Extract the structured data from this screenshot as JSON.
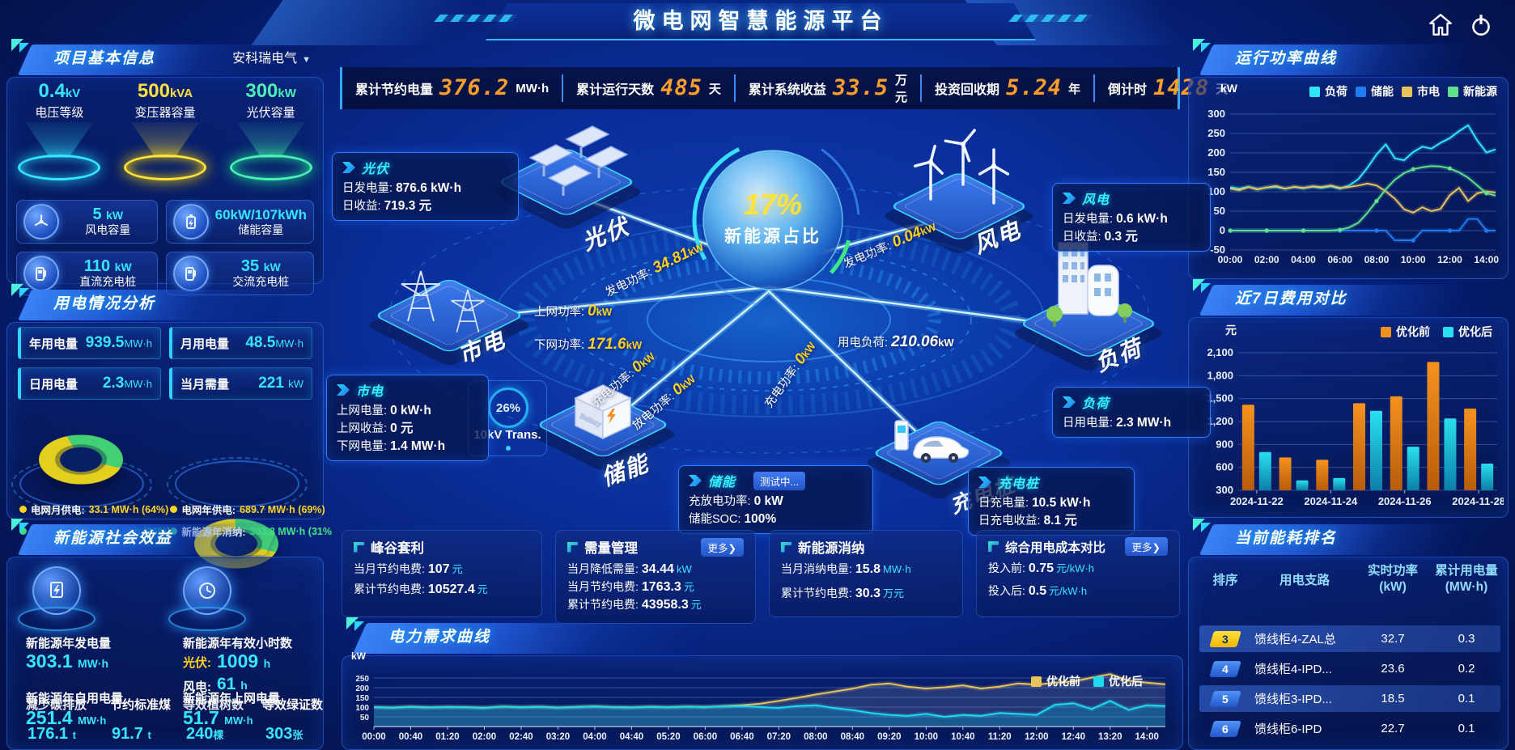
{
  "header": {
    "title": "微电网智慧能源平台"
  },
  "topbar": {
    "stats": [
      {
        "label": "累计节约电量",
        "value": "376.2",
        "unit": "MW·h"
      },
      {
        "label": "累计运行天数",
        "value": "485",
        "unit": "天"
      },
      {
        "label": "累计系统收益",
        "value": "33.5",
        "unit": "万元"
      },
      {
        "label": "投资回收期",
        "value": "5.24",
        "unit": "年"
      },
      {
        "label": "倒计时",
        "value": "1428",
        "unit": "天"
      }
    ]
  },
  "project": {
    "title": "项目基本信息",
    "company": "安科瑞电气",
    "caret": "▼",
    "pedestals": [
      {
        "value": "0.4",
        "unit": "kV",
        "label": "电压等级"
      },
      {
        "value": "500",
        "unit": "kVA",
        "label": "变压器容量"
      },
      {
        "value": "300",
        "unit": "kW",
        "label": "光伏容量"
      }
    ],
    "tiles": [
      {
        "value": "5",
        "unit": "kW",
        "label": "风电容量"
      },
      {
        "value": "60kW/107kWh",
        "unit": "",
        "label": "储能容量"
      },
      {
        "value": "110",
        "unit": "kW",
        "label": "直流充电桩"
      },
      {
        "value": "35",
        "unit": "kW",
        "label": "交流充电桩"
      }
    ]
  },
  "usage": {
    "title": "用电情况分析",
    "tiles": [
      {
        "label": "年用电量",
        "value": "939.5",
        "unit": "MW·h"
      },
      {
        "label": "月用电量",
        "value": "48.5",
        "unit": "MW·h"
      },
      {
        "label": "日用电量",
        "value": "2.3",
        "unit": "MW·h"
      },
      {
        "label": "当月需量",
        "value": "221",
        "unit": "kW"
      }
    ],
    "legends": [
      {
        "label": "电网月供电:",
        "value": "33.1 MW·h (64%)",
        "color": "#ffd21e"
      },
      {
        "label": "新能源月消纳:",
        "value": "19 MW·h (36%)",
        "color": "#3ee787"
      },
      {
        "label": "电网年供电:",
        "value": "689.7 MW·h (69%)",
        "color": "#ffd21e"
      },
      {
        "label": "新能源年消纳:",
        "value": "303.8 MW·h (31%",
        "color": "#3ee787"
      }
    ]
  },
  "benefit": {
    "title": "新能源社会效益",
    "gen": {
      "label": "新能源年发电量",
      "value": "303.1",
      "unit": "MW·h"
    },
    "hours": {
      "label": "新能源年有效小时数",
      "pv_label": "光伏:",
      "pv_value": "1009",
      "pv_unit": "h",
      "wind_label": "风电:",
      "wind_value": "61",
      "wind_unit": "h"
    },
    "self_use": {
      "label": "新能源年自用电量",
      "value": "251.4",
      "unit": "MW·h"
    },
    "to_grid": {
      "label": "新能源年上网电量",
      "value": "51.7",
      "unit": "MW·h"
    },
    "co2": {
      "label": "减少碳排放",
      "value": "176.1",
      "unit": "t"
    },
    "coal": {
      "label": "节约标准煤",
      "value": "91.7",
      "unit": "t"
    },
    "trees": {
      "label": "等效植树数",
      "value": "240",
      "unit": "棵"
    },
    "cert": {
      "label": "等效绿证数",
      "value": "303",
      "unit": "张"
    }
  },
  "flow": {
    "center": {
      "value": "17%",
      "label": "新能源占比"
    },
    "islands": {
      "pv": "光伏",
      "wind": "风电",
      "grid": "市电",
      "load": "负荷",
      "storage": "储能",
      "charger": "充电桩"
    },
    "pv_box": {
      "title": "光伏",
      "l1": "日发电量:",
      "v1": "876.6 kW·h",
      "l2": "日收益:",
      "v2": "719.3 元"
    },
    "wind_box": {
      "title": "风电",
      "l1": "日发电量:",
      "v1": "0.6 kW·h",
      "l2": "日收益:",
      "v2": "0.3 元"
    },
    "grid_box": {
      "title": "市电",
      "l1": "上网电量:",
      "v1": "0 kW·h",
      "l2": "上网收益:",
      "v2": "0 元",
      "l3": "下网电量:",
      "v3": "1.4 MW·h"
    },
    "load_box": {
      "title": "负荷",
      "l1": "日用电量:",
      "v1": "2.3 MW·h"
    },
    "storage_box": {
      "title": "储能",
      "badge": "测试中...",
      "l1": "充放电功率:",
      "v1": "0 kW",
      "l2": "储能SOC:",
      "v2": "100%"
    },
    "charger_box": {
      "title": "充电桩",
      "l1": "日充电量:",
      "v1": "10.5 kW·h",
      "l2": "日充电收益:",
      "v2": "8.1 元"
    },
    "labels": {
      "pv_power": {
        "label": "发电功率:",
        "value": "34.81",
        "unit": "kW"
      },
      "wind_power": {
        "label": "发电功率:",
        "value": "0.04",
        "unit": "kW"
      },
      "up_power": {
        "label": "上网功率:",
        "value": "0",
        "unit": "kW"
      },
      "down_power": {
        "label": "下网功率:",
        "value": "171.6",
        "unit": "kW"
      },
      "load_power": {
        "label": "用电负荷:",
        "value": "210.06",
        "unit": "kW"
      },
      "chg_power": {
        "label": "充电功率:",
        "value": "0",
        "unit": "kW"
      },
      "dis_power": {
        "label": "放电功率:",
        "value": "0",
        "unit": "kW"
      },
      "pile_power": {
        "label": "充电功率:",
        "value": "0",
        "unit": "kW"
      },
      "trans": {
        "pct": "26%",
        "label": "10kV Trans."
      }
    }
  },
  "cards": [
    {
      "title": "峰谷套利",
      "more": "",
      "rows": [
        {
          "l": "当月节约电费:",
          "v": "107",
          "u": "元"
        },
        {
          "l": "累计节约电费:",
          "v": "10527.4",
          "u": "元"
        }
      ]
    },
    {
      "title": "需量管理",
      "more": "更多❯",
      "rows": [
        {
          "l": "当月降低需量:",
          "v": "34.44",
          "u": "kW"
        },
        {
          "l": "当月节约电费:",
          "v": "1763.3",
          "u": "元"
        },
        {
          "l": "累计节约电费:",
          "v": "43958.3",
          "u": "元"
        }
      ]
    },
    {
      "title": "新能源消纳",
      "more": "",
      "rows": [
        {
          "l": "当月消纳电量:",
          "v": "15.8",
          "u": "MW·h"
        },
        {
          "l": "累计节约电费:",
          "v": "30.3",
          "u": "万元"
        }
      ]
    },
    {
      "title": "综合用电成本对比",
      "more": "更多❯",
      "rows": [
        {
          "l": "投入前:",
          "v": "0.75",
          "u": "元/kW·h"
        },
        {
          "l": "投入后:",
          "v": "0.5",
          "u": "元/kW·h"
        }
      ]
    }
  ],
  "panels": {
    "power_title": "运行功率曲线",
    "cost_title": "近7日费用对比",
    "rank_title": "当前能耗排名",
    "demand_title": "电力需求曲线"
  },
  "ranking": {
    "col_rank": "排序",
    "col_branch": "用电支路",
    "col_power_1": "实时功率",
    "col_power_2": "(kW)",
    "col_energy_1": "累计用电量",
    "col_energy_2": "(MW·h)",
    "rows": [
      {
        "rank": "3",
        "branch": "馈线柜4-ZAL总",
        "power": "32.7",
        "energy": "0.3"
      },
      {
        "rank": "4",
        "branch": "馈线柜4-IPD...",
        "power": "23.6",
        "energy": "0.2"
      },
      {
        "rank": "5",
        "branch": "馈线柜3-IPD...",
        "power": "18.5",
        "energy": "0.1"
      },
      {
        "rank": "6",
        "branch": "馈线柜6-IPD",
        "power": "22.7",
        "energy": "0.1"
      }
    ]
  },
  "chart_data": [
    {
      "id": "power",
      "type": "line",
      "title": "运行功率曲线",
      "ylabel": "kW",
      "ylim": [
        -50,
        300
      ],
      "yticks": [
        -50,
        0,
        50,
        100,
        150,
        200,
        250,
        300
      ],
      "x_labels": [
        "00:00",
        "02:00",
        "04:00",
        "06:00",
        "08:00",
        "10:00",
        "12:00",
        "14:00"
      ],
      "xtick_idx": [
        0,
        4,
        8,
        12,
        16,
        20,
        24,
        28
      ],
      "series": [
        {
          "name": "负荷",
          "color": "#2ee6f7",
          "values": [
            112,
            108,
            113,
            107,
            111,
            112,
            108,
            112,
            109,
            113,
            110,
            114,
            108,
            116,
            132,
            162,
            196,
            222,
            186,
            181,
            202,
            216,
            211,
            226,
            238,
            256,
            271,
            232,
            201,
            209
          ]
        },
        {
          "name": "储能",
          "color": "#1f7bf0",
          "values": [
            0,
            0,
            0,
            0,
            0,
            0,
            0,
            0,
            0,
            0,
            0,
            0,
            0,
            0,
            0,
            0,
            0,
            0,
            -25,
            -25,
            -25,
            0,
            0,
            0,
            0,
            0,
            30,
            30,
            0,
            0
          ]
        },
        {
          "name": "市电",
          "color": "#e8c35a",
          "values": [
            108,
            104,
            112,
            106,
            111,
            115,
            108,
            113,
            110,
            114,
            112,
            116,
            110,
            112,
            116,
            121,
            116,
            101,
            82,
            55,
            46,
            60,
            50,
            56,
            91,
            110,
            76,
            96,
            101,
            98
          ]
        },
        {
          "name": "新能源",
          "color": "#5fe08a",
          "values": [
            0,
            0,
            0,
            0,
            0,
            0,
            0,
            0,
            0,
            0,
            0,
            0,
            2,
            8,
            20,
            46,
            76,
            106,
            131,
            148,
            158,
            163,
            166,
            165,
            160,
            150,
            136,
            116,
            96,
            90
          ]
        }
      ]
    },
    {
      "id": "cost",
      "type": "bar",
      "title": "近7日费用对比",
      "ylabel": "元",
      "ylim": [
        300,
        2100
      ],
      "yticks": [
        300,
        600,
        900,
        1200,
        1500,
        1800,
        2100
      ],
      "categories": [
        "2024-11-22",
        "2024-11-23",
        "2024-11-24",
        "2024-11-25",
        "2024-11-26",
        "2024-11-27",
        "2024-11-28"
      ],
      "x_labels": [
        "2024-11-22",
        "2024-11-24",
        "2024-11-26",
        "2024-11-28"
      ],
      "xtick_idx": [
        0,
        2,
        4,
        6
      ],
      "series": [
        {
          "name": "优化前",
          "color": "#f5921e",
          "color2": "#b85c0a",
          "values": [
            1420,
            730,
            700,
            1440,
            1530,
            1980,
            1370
          ]
        },
        {
          "name": "优化后",
          "color": "#2ae0f0",
          "color2": "#0b7fa8",
          "values": [
            800,
            430,
            460,
            1340,
            870,
            1240,
            650
          ]
        }
      ]
    },
    {
      "id": "demand",
      "type": "line",
      "title": "电力需求曲线",
      "ylabel": "kW",
      "ylim": [
        0,
        300
      ],
      "yticks": [
        50,
        100,
        150,
        200,
        250
      ],
      "x_labels": [
        "00:00",
        "00:40",
        "01:20",
        "02:00",
        "02:40",
        "03:20",
        "04:00",
        "04:40",
        "05:20",
        "06:00",
        "06:40",
        "07:20",
        "08:00",
        "08:40",
        "09:20",
        "10:00",
        "10:40",
        "11:20",
        "12:00",
        "12:40",
        "13:20",
        "14:00"
      ],
      "xtick_idx": [
        0,
        2,
        4,
        6,
        8,
        10,
        12,
        14,
        16,
        18,
        20,
        22,
        24,
        26,
        28,
        30,
        32,
        34,
        36,
        38,
        40,
        42
      ],
      "series": [
        {
          "name": "优化前",
          "color": "#e8c35a",
          "values": [
            100,
            98,
            102,
            99,
            101,
            100,
            97,
            103,
            100,
            102,
            98,
            101,
            104,
            100,
            99,
            102,
            100,
            103,
            101,
            105,
            110,
            118,
            132,
            148,
            165,
            180,
            195,
            215,
            222,
            205,
            196,
            202,
            212,
            196,
            206,
            222,
            216,
            226,
            232,
            252,
            270,
            236,
            226,
            218
          ]
        },
        {
          "name": "优化后",
          "color": "#1fd9f0",
          "values": [
            100,
            97,
            101,
            98,
            100,
            99,
            96,
            102,
            99,
            101,
            97,
            100,
            103,
            99,
            98,
            101,
            99,
            102,
            100,
            104,
            105,
            100,
            96,
            106,
            110,
            95,
            85,
            70,
            60,
            55,
            65,
            50,
            60,
            55,
            70,
            65,
            60,
            112,
            120,
            90,
            132,
            86,
            110,
            106
          ]
        }
      ]
    },
    {
      "id": "month_donut",
      "type": "pie",
      "labels": [
        "电网月供电",
        "新能源月消纳"
      ],
      "values": [
        64,
        36
      ],
      "colors": [
        "#e3cf1d",
        "#43cf74"
      ]
    },
    {
      "id": "year_donut",
      "type": "pie",
      "labels": [
        "电网年供电",
        "新能源年消纳"
      ],
      "values": [
        69,
        31
      ],
      "colors": [
        "#e3cf1d",
        "#43cf74"
      ]
    }
  ]
}
